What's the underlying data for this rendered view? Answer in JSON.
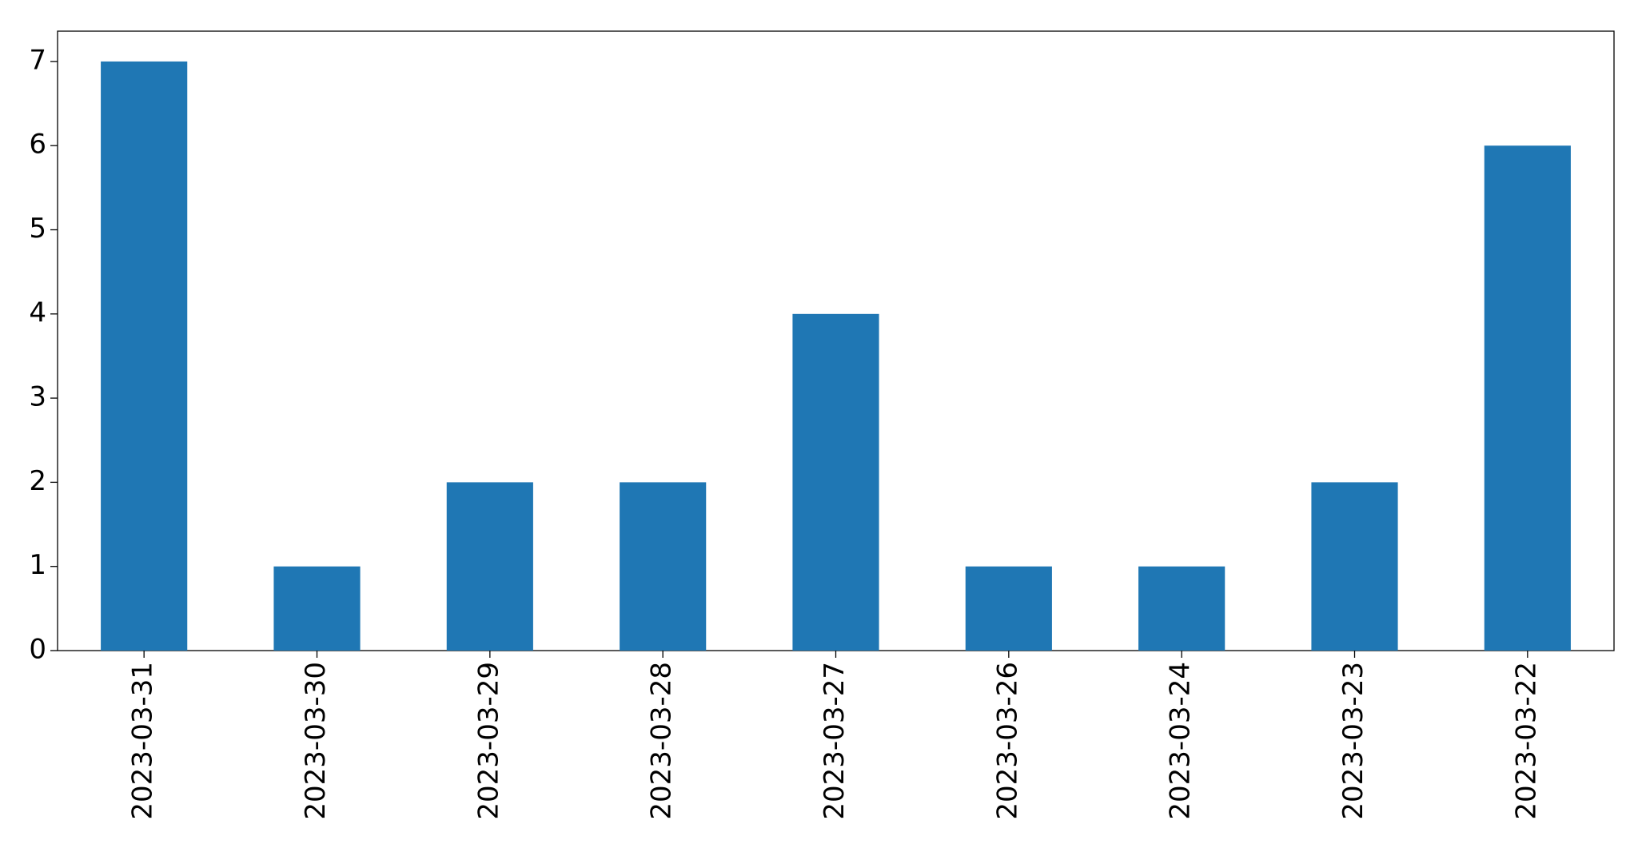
{
  "chart_data": {
    "type": "bar",
    "categories": [
      "2023-03-31",
      "2023-03-30",
      "2023-03-29",
      "2023-03-28",
      "2023-03-27",
      "2023-03-26",
      "2023-03-24",
      "2023-03-23",
      "2023-03-22"
    ],
    "values": [
      7,
      1,
      2,
      2,
      4,
      1,
      1,
      2,
      6
    ],
    "color": "#1f77b4",
    "ylim": [
      0,
      7.36
    ],
    "yticks": [
      0,
      1,
      2,
      3,
      4,
      5,
      6,
      7
    ],
    "grid": false
  }
}
